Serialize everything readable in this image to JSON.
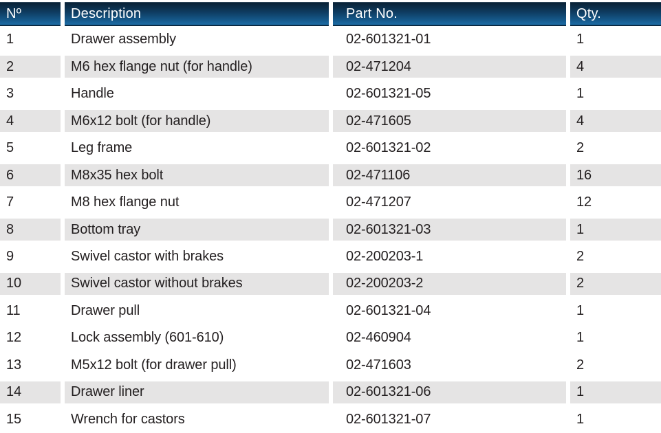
{
  "table": {
    "columns": [
      {
        "key": "no",
        "label": "Nº"
      },
      {
        "key": "description",
        "label": "Description"
      },
      {
        "key": "part",
        "label": "Part No."
      },
      {
        "key": "qty",
        "label": "Qty."
      }
    ],
    "rows": [
      {
        "no": "1",
        "description": "Drawer assembly",
        "part": "02-601321-01",
        "qty": "1"
      },
      {
        "no": "2",
        "description": "M6 hex flange nut (for handle)",
        "part": "02-471204",
        "qty": "4"
      },
      {
        "no": "3",
        "description": "Handle",
        "part": "02-601321-05",
        "qty": "1"
      },
      {
        "no": "4",
        "description": "M6x12 bolt (for handle)",
        "part": "02-471605",
        "qty": "4"
      },
      {
        "no": "5",
        "description": "Leg frame",
        "part": "02-601321-02",
        "qty": "2"
      },
      {
        "no": "6",
        "description": "M8x35 hex bolt",
        "part": "02-471106",
        "qty": "16"
      },
      {
        "no": "7",
        "description": "M8 hex flange nut",
        "part": "02-471207",
        "qty": "12"
      },
      {
        "no": "8",
        "description": "Bottom tray",
        "part": "02-601321-03",
        "qty": "1"
      },
      {
        "no": "9",
        "description": "Swivel castor with brakes",
        "part": "02-200203-1",
        "qty": "2"
      },
      {
        "no": "10",
        "description": "Swivel castor without brakes",
        "part": "02-200203-2",
        "qty": "2"
      },
      {
        "no": "11",
        "description": "Drawer pull",
        "part": "02-601321-04",
        "qty": "1"
      },
      {
        "no": "12",
        "description": "Lock assembly (601-610)",
        "part": "02-460904",
        "qty": "1"
      },
      {
        "no": "13",
        "description": "M5x12 bolt (for drawer pull)",
        "part": "02-471603",
        "qty": "2"
      },
      {
        "no": "14",
        "description": "Drawer liner",
        "part": "02-601321-06",
        "qty": "1"
      },
      {
        "no": "15",
        "description": "Wrench for castors",
        "part": "02-601321-07",
        "qty": "1"
      }
    ]
  },
  "colors": {
    "header_gradient_top": "#0a2236",
    "header_gradient_bottom": "#1d6da5",
    "header_text": "#ffffff",
    "row_stripe": "#e5e4e4",
    "body_text": "#231f20",
    "background": "#ffffff"
  }
}
